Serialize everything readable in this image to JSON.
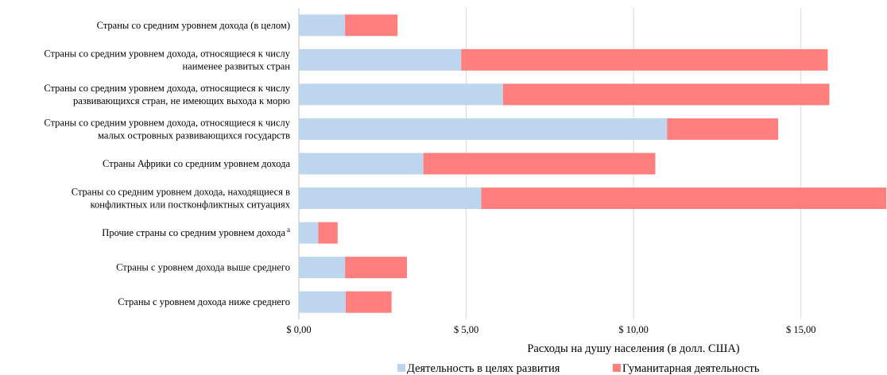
{
  "chart_data": {
    "type": "bar",
    "orientation": "horizontal",
    "stacked": true,
    "categories": [
      "Страны со средним уровнем дохода (в целом)",
      "Страны со средним уровнем дохода, относящиеся к числу наименее развитых стран",
      "Страны со средним уровнем дохода, относящиеся к числу развивающихся стран, не имеющих выхода к морю",
      "Страны со средним уровнем дохода, относящиеся к числу малых островных развивающихся государств",
      "Страны Африки со средним уровнем дохода",
      "Страны со средним уровнем дохода, находящиеся в конфликтных или постконфликтных ситуациях",
      "Прочие страны со средним уровнем дохода",
      "Страны с уровнем дохода выше среднего",
      "Страны с уровнем дохода ниже среднего"
    ],
    "category_lines": [
      [
        "Страны со средним уровнем дохода (в целом)"
      ],
      [
        "Страны со средним уровнем дохода, относящиеся к числу",
        "наименее развитых стран"
      ],
      [
        "Страны со средним уровнем дохода, относящиеся к числу",
        "развивающихся стран, не имеющих выхода к морю"
      ],
      [
        "Страны со средним уровнем дохода, относящиеся к числу",
        "малых островных развивающихся государств"
      ],
      [
        "Страны Африки со средним уровнем дохода"
      ],
      [
        "Страны со средним уровнем дохода, находящиеся в",
        "конфликтных или постконфликтных ситуациях"
      ],
      [
        "Прочие страны со средним уровнем дохода"
      ],
      [
        "Страны с уровнем дохода выше среднего"
      ],
      [
        "Страны с уровнем дохода ниже среднего"
      ]
    ],
    "category_superscripts": [
      "",
      "",
      "",
      "",
      "",
      "",
      "a",
      "",
      ""
    ],
    "series": [
      {
        "name": "Деятельность в целях развития",
        "color": "#bdd6ee",
        "values": [
          1.38,
          4.85,
          6.1,
          11.0,
          3.72,
          5.45,
          0.58,
          1.38,
          1.4
        ]
      },
      {
        "name": "Гуманитарная деятельность",
        "color": "#ff7f7f",
        "values": [
          1.57,
          10.95,
          9.75,
          3.32,
          6.93,
          12.1,
          0.58,
          1.85,
          1.37
        ]
      }
    ],
    "xlim": [
      0,
      17.5
    ],
    "xticks": [
      0,
      5,
      10,
      15
    ],
    "xtick_labels": [
      "$ 0,00",
      "$ 5,00",
      "$ 10,00",
      "$ 15,00"
    ],
    "xlabel": "Расходы на душу населения (в долл. США)",
    "gridlines": "vertical",
    "grid_color": "#d9d9d9",
    "legend_position": "bottom"
  }
}
